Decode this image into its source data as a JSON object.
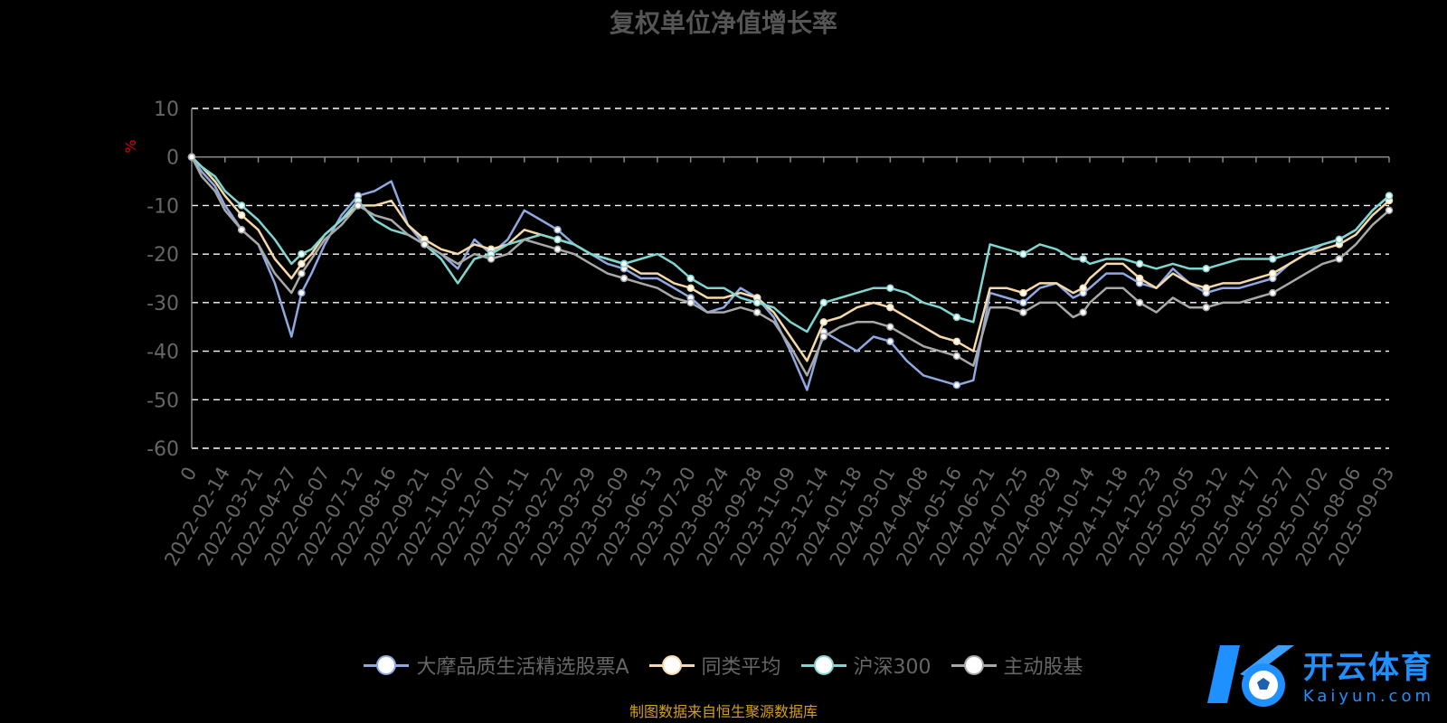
{
  "chart_data": {
    "type": "line",
    "title": "复权单位净值增长率",
    "ylabel": "%",
    "ylim": [
      -60,
      10
    ],
    "yticks": [
      10,
      0,
      -10,
      -20,
      -30,
      -40,
      -50,
      -60
    ],
    "xlabels": [
      "0",
      "2022-02-14",
      "2022-03-21",
      "2022-04-27",
      "2022-06-07",
      "2022-07-12",
      "2022-08-16",
      "2022-09-21",
      "2022-11-02",
      "2022-12-07",
      "2023-01-11",
      "2023-02-22",
      "2023-03-29",
      "2023-05-09",
      "2023-06-13",
      "2023-07-20",
      "2023-08-24",
      "2023-09-28",
      "2023-11-09",
      "2023-12-14",
      "2024-01-18",
      "2024-03-01",
      "2024-04-08",
      "2024-05-16",
      "2024-06-21",
      "2024-07-25",
      "2024-08-29",
      "2024-10-14",
      "2024-11-18",
      "2024-12-23",
      "2025-02-05",
      "2025-03-12",
      "2025-04-17",
      "2025-05-27",
      "2025-07-02",
      "2025-08-06",
      "2025-09-03"
    ],
    "grid": "dashed horizontal",
    "legend_position": "bottom",
    "x": [
      0,
      0.3,
      0.7,
      1,
      1.5,
      2,
      2.5,
      3,
      3.3,
      3.6,
      4,
      4.5,
      5,
      5.5,
      6,
      6.5,
      7,
      7.5,
      8,
      8.5,
      9,
      9.5,
      10,
      10.5,
      11,
      11.5,
      12,
      12.5,
      13,
      13.5,
      14,
      14.5,
      15,
      15.5,
      16,
      16.5,
      17,
      17.5,
      18,
      18.5,
      19,
      19.5,
      20,
      20.5,
      21,
      21.5,
      22,
      22.5,
      23,
      23.5,
      24,
      24.5,
      25,
      25.5,
      26,
      26.5,
      26.8,
      27,
      27.5,
      28,
      28.5,
      29,
      29.5,
      30,
      30.5,
      31,
      31.5,
      32,
      32.5,
      33,
      33.5,
      34,
      34.5,
      35,
      35.5,
      36
    ],
    "series": [
      {
        "name": "大摩品质生活精选股票A",
        "color": "#8fa8e0",
        "values": [
          0,
          -3,
          -6,
          -10,
          -15,
          -18,
          -26,
          -37,
          -28,
          -24,
          -18,
          -12,
          -8,
          -7,
          -5,
          -14,
          -18,
          -20,
          -23,
          -17,
          -20,
          -17,
          -11,
          -13,
          -15,
          -18,
          -20,
          -22,
          -23,
          -25,
          -25,
          -27,
          -29,
          -32,
          -31,
          -27,
          -29,
          -33,
          -40,
          -48,
          -36,
          -38,
          -40,
          -37,
          -38,
          -42,
          -45,
          -46,
          -47,
          -46,
          -28,
          -29,
          -30,
          -27,
          -26,
          -29,
          -28,
          -27,
          -24,
          -24,
          -26,
          -27,
          -23,
          -26,
          -28,
          -27,
          -27,
          -26,
          -25,
          -22,
          -20,
          -18,
          -17,
          -15,
          -11,
          -8
        ]
      },
      {
        "name": "同类平均",
        "color": "#f5d9a8",
        "values": [
          0,
          -2,
          -5,
          -8,
          -12,
          -15,
          -21,
          -25,
          -22,
          -20,
          -16,
          -13,
          -10,
          -10,
          -9,
          -14,
          -17,
          -19,
          -20,
          -18,
          -19,
          -18,
          -15,
          -16,
          -17,
          -18,
          -20,
          -21,
          -22,
          -24,
          -24,
          -26,
          -27,
          -29,
          -29,
          -28,
          -29,
          -32,
          -37,
          -42,
          -34,
          -33,
          -31,
          -30,
          -31,
          -33,
          -35,
          -37,
          -38,
          -40,
          -27,
          -27,
          -28,
          -26,
          -26,
          -28,
          -27,
          -25,
          -22,
          -22,
          -25,
          -27,
          -24,
          -26,
          -27,
          -26,
          -26,
          -25,
          -24,
          -22,
          -20,
          -19,
          -18,
          -16,
          -12,
          -9
        ]
      },
      {
        "name": "沪深300",
        "color": "#7fd6d0",
        "values": [
          0,
          -2,
          -4,
          -7,
          -10,
          -13,
          -17,
          -22,
          -20,
          -19,
          -16,
          -13,
          -9,
          -13,
          -15,
          -16,
          -18,
          -21,
          -26,
          -21,
          -20,
          -18,
          -17,
          -16,
          -17,
          -18,
          -20,
          -21,
          -22,
          -21,
          -20,
          -22,
          -25,
          -27,
          -27,
          -29,
          -30,
          -31,
          -34,
          -36,
          -30,
          -29,
          -28,
          -27,
          -27,
          -28,
          -30,
          -31,
          -33,
          -34,
          -18,
          -19,
          -20,
          -18,
          -19,
          -21,
          -21,
          -22,
          -21,
          -21,
          -22,
          -23,
          -22,
          -23,
          -23,
          -22,
          -21,
          -21,
          -21,
          -20,
          -19,
          -18,
          -17,
          -15,
          -11,
          -8
        ]
      },
      {
        "name": "主动股基",
        "color": "#a8a8a8",
        "values": [
          0,
          -4,
          -7,
          -11,
          -15,
          -18,
          -24,
          -28,
          -24,
          -21,
          -17,
          -14,
          -10,
          -12,
          -13,
          -16,
          -18,
          -20,
          -22,
          -20,
          -21,
          -20,
          -17,
          -18,
          -19,
          -20,
          -22,
          -24,
          -25,
          -26,
          -27,
          -29,
          -30,
          -32,
          -32,
          -31,
          -32,
          -34,
          -39,
          -45,
          -37,
          -35,
          -34,
          -34,
          -35,
          -37,
          -39,
          -40,
          -41,
          -43,
          -31,
          -31,
          -32,
          -30,
          -30,
          -33,
          -32,
          -30,
          -27,
          -27,
          -30,
          -32,
          -29,
          -31,
          -31,
          -30,
          -30,
          -29,
          -28,
          -26,
          -24,
          -22,
          -21,
          -18,
          -14,
          -11
        ]
      }
    ]
  },
  "legend": [
    {
      "label": "大摩品质生活精选股票A",
      "color": "#8fa8e0"
    },
    {
      "label": "同类平均",
      "color": "#f5d9a8"
    },
    {
      "label": "沪深300",
      "color": "#7fd6d0"
    },
    {
      "label": "主动股基",
      "color": "#a8a8a8"
    }
  ],
  "source_note": "制图数据来自恒生聚源数据库",
  "watermark": {
    "cn": "开云体育",
    "en": "Kaiyun.com"
  }
}
